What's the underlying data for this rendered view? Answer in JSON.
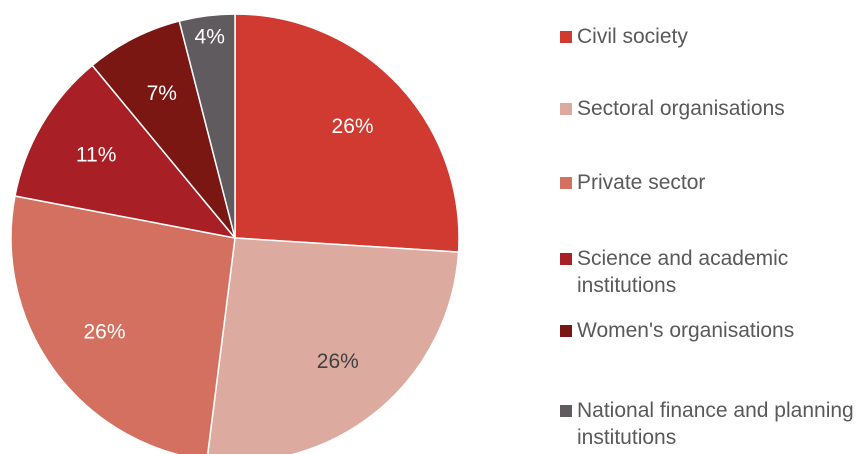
{
  "chart_data": {
    "type": "pie",
    "categories": [
      "Civil society",
      "Sectoral organisations",
      "Private sector",
      "Science and academic institutions",
      "Women's organisations",
      "National finance and planning institutions"
    ],
    "values": [
      26,
      26,
      26,
      11,
      7,
      4
    ],
    "value_labels": [
      "26%",
      "26%",
      "26%",
      "11%",
      "7%",
      "4%"
    ],
    "colors": [
      "#d03a30",
      "#dcaa9e",
      "#d4705f",
      "#a82025",
      "#7b1712",
      "#5f5b5f"
    ],
    "legend": "right"
  }
}
